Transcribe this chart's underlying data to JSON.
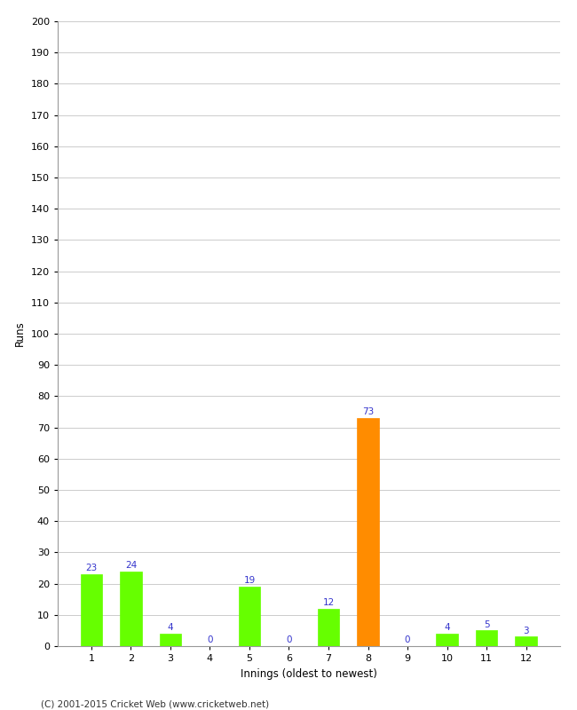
{
  "categories": [
    "1",
    "2",
    "3",
    "4",
    "5",
    "6",
    "7",
    "8",
    "9",
    "10",
    "11",
    "12"
  ],
  "values": [
    23,
    24,
    4,
    0,
    19,
    0,
    12,
    73,
    0,
    4,
    5,
    3
  ],
  "bar_colors": [
    "#66ff00",
    "#66ff00",
    "#66ff00",
    "#66ff00",
    "#66ff00",
    "#66ff00",
    "#66ff00",
    "#ff8c00",
    "#66ff00",
    "#66ff00",
    "#66ff00",
    "#66ff00"
  ],
  "ylabel": "Runs",
  "xlabel": "Innings (oldest to newest)",
  "ylim": [
    0,
    200
  ],
  "yticks": [
    0,
    10,
    20,
    30,
    40,
    50,
    60,
    70,
    80,
    90,
    100,
    110,
    120,
    130,
    140,
    150,
    160,
    170,
    180,
    190,
    200
  ],
  "label_color": "#3333cc",
  "label_fontsize": 7.5,
  "axis_fontsize": 8.5,
  "tick_fontsize": 8,
  "footer": "(C) 2001-2015 Cricket Web (www.cricketweb.net)",
  "background_color": "#ffffff",
  "grid_color": "#cccccc",
  "bar_width": 0.55
}
